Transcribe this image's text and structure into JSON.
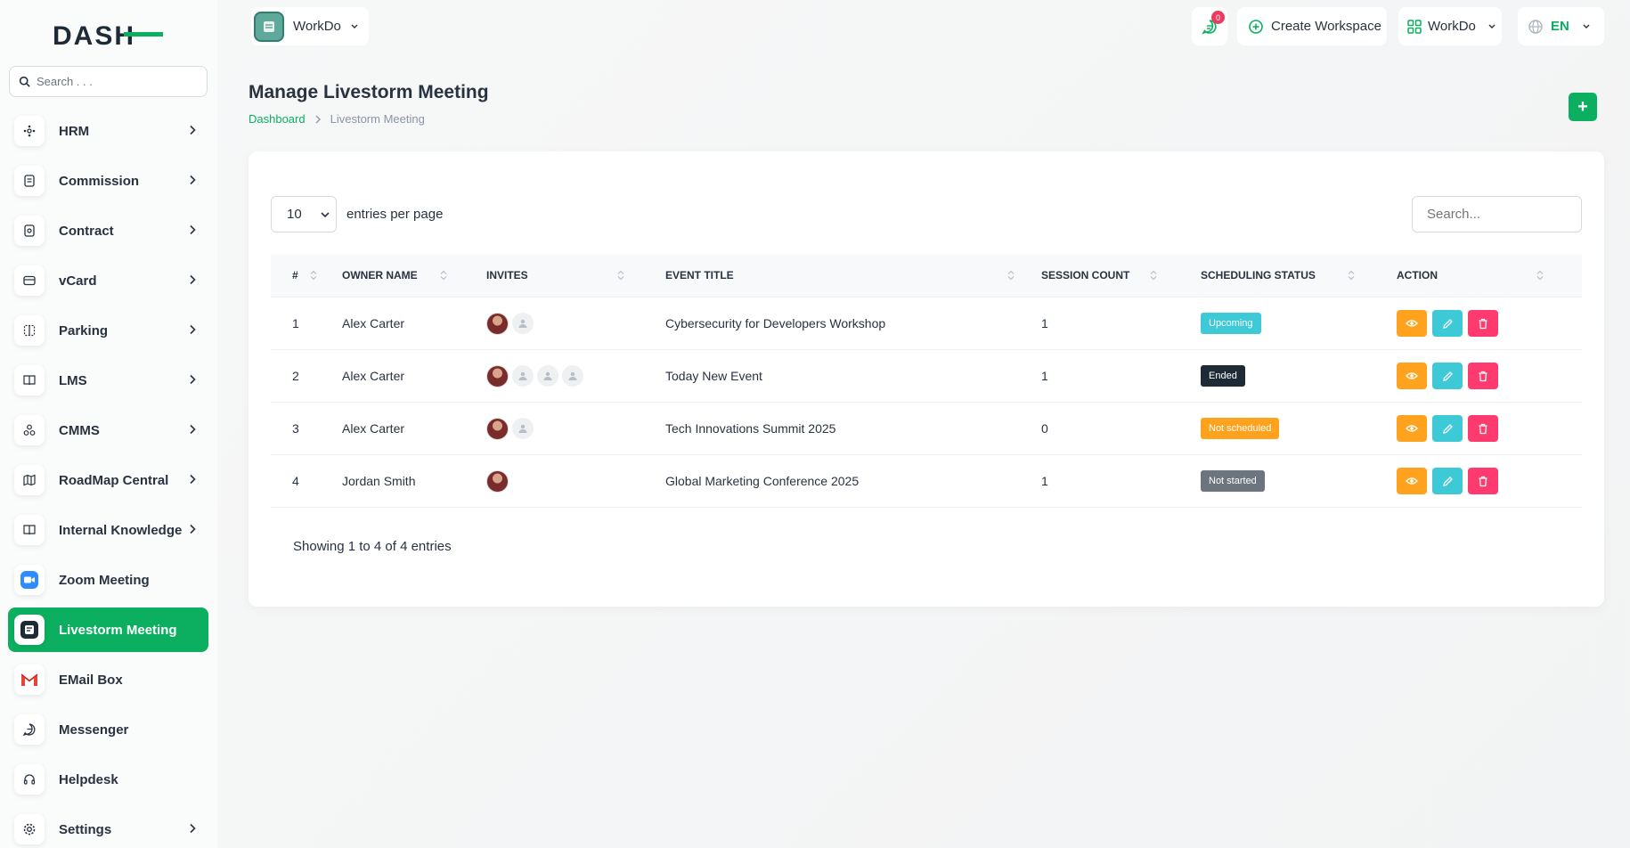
{
  "colors": {
    "accent": "#0caf60",
    "status_upcoming": "#3ec9d6",
    "status_ended": "#1f2a37",
    "status_not_scheduled": "#ffa21d",
    "status_not_started": "#6c757d",
    "action_view": "#ffa21d",
    "action_edit": "#3ec9d6",
    "action_delete": "#ff3a6e"
  },
  "sidebar": {
    "search_placeholder": "Search . . .",
    "items": [
      {
        "label": "HRM",
        "icon": "hrm-icon",
        "has_children": true
      },
      {
        "label": "Commission",
        "icon": "commission-icon",
        "has_children": true
      },
      {
        "label": "Contract",
        "icon": "contract-icon",
        "has_children": true
      },
      {
        "label": "vCard",
        "icon": "vcard-icon",
        "has_children": true
      },
      {
        "label": "Parking",
        "icon": "parking-icon",
        "has_children": true
      },
      {
        "label": "LMS",
        "icon": "book-icon",
        "has_children": true
      },
      {
        "label": "CMMS",
        "icon": "cmms-icon",
        "has_children": true
      },
      {
        "label": "RoadMap Central",
        "icon": "map-icon",
        "has_children": true
      },
      {
        "label": "Internal Knowledge",
        "icon": "book-icon",
        "has_children": true
      },
      {
        "label": "Zoom Meeting",
        "icon": "zoom-icon",
        "has_children": false
      },
      {
        "label": "Livestorm Meeting",
        "icon": "livestorm-icon",
        "has_children": false,
        "active": true
      },
      {
        "label": "EMail Box",
        "icon": "gmail-icon",
        "has_children": false
      },
      {
        "label": "Messenger",
        "icon": "messenger-icon",
        "has_children": false
      },
      {
        "label": "Helpdesk",
        "icon": "headset-icon",
        "has_children": false
      },
      {
        "label": "Settings",
        "icon": "gear-icon",
        "has_children": true
      }
    ]
  },
  "header": {
    "workspace": "WorkDo",
    "message_count": "0",
    "create_workspace": "Create Workspace",
    "workspace_menu": "WorkDo",
    "language": "EN"
  },
  "page": {
    "title": "Manage Livestorm Meeting",
    "breadcrumb": {
      "home": "Dashboard",
      "current": "Livestorm Meeting"
    },
    "add_label": "+"
  },
  "table": {
    "per_page_value": "10",
    "per_page_label": "entries per page",
    "search_placeholder": "Search...",
    "columns": [
      "#",
      "OWNER NAME",
      "INVITES",
      "EVENT TITLE",
      "SESSION COUNT",
      "SCHEDULING STATUS",
      "ACTION"
    ],
    "rows": [
      {
        "num": "1",
        "owner": "Alex Carter",
        "invites": {
          "photos": 1,
          "placeholders": 1
        },
        "title": "Cybersecurity for Developers Workshop",
        "count": "1",
        "status": "Upcoming",
        "status_key": "upcoming"
      },
      {
        "num": "2",
        "owner": "Alex Carter",
        "invites": {
          "photos": 1,
          "placeholders": 3
        },
        "title": "Today New Event",
        "count": "1",
        "status": "Ended",
        "status_key": "ended"
      },
      {
        "num": "3",
        "owner": "Alex Carter",
        "invites": {
          "photos": 1,
          "placeholders": 1
        },
        "title": "Tech Innovations Summit 2025",
        "count": "0",
        "status": "Not scheduled",
        "status_key": "not_scheduled"
      },
      {
        "num": "4",
        "owner": "Jordan Smith",
        "invites": {
          "photos": 1,
          "placeholders": 0
        },
        "title": "Global Marketing Conference 2025",
        "count": "1",
        "status": "Not started",
        "status_key": "not_started"
      }
    ],
    "footer": "Showing 1 to 4 of 4 entries"
  }
}
